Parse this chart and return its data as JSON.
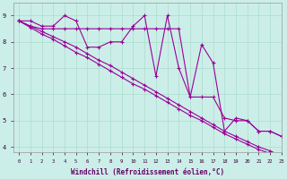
{
  "background_color": "#cceee8",
  "grid_color": "#aaddcc",
  "line_color": "#990099",
  "marker": "+",
  "xlim": [
    -0.5,
    23
  ],
  "ylim": [
    3.8,
    9.5
  ],
  "yticks": [
    4,
    5,
    6,
    7,
    8,
    9
  ],
  "xticks": [
    0,
    1,
    2,
    3,
    4,
    5,
    6,
    7,
    8,
    9,
    10,
    11,
    12,
    13,
    14,
    15,
    16,
    17,
    18,
    19,
    20,
    21,
    22,
    23
  ],
  "xlabel": "Windchill (Refroidissement éolien,°C)",
  "series1_y": [
    8.8,
    8.8,
    8.6,
    8.6,
    9.0,
    8.8,
    7.8,
    7.8,
    8.0,
    8.0,
    8.6,
    9.0,
    6.7,
    9.0,
    7.0,
    5.9,
    7.9,
    7.2,
    4.6,
    5.1,
    5.0,
    4.6,
    4.6,
    4.4
  ],
  "series2_y": [
    8.8,
    8.6,
    8.5,
    8.5,
    8.5,
    8.5,
    8.5,
    8.5,
    8.5,
    8.5,
    8.5,
    8.5,
    8.5,
    8.5,
    8.5,
    5.9,
    5.9,
    5.9,
    5.1,
    5.0,
    5.0,
    4.6,
    4.6,
    4.4
  ],
  "series3_y": [
    8.8,
    8.55,
    8.3,
    8.1,
    7.85,
    7.6,
    7.4,
    7.15,
    6.9,
    6.65,
    6.4,
    6.2,
    5.95,
    5.7,
    5.45,
    5.2,
    5.0,
    4.75,
    4.5,
    4.3,
    4.1,
    3.9,
    3.75,
    3.55
  ],
  "series4_y": [
    8.8,
    8.6,
    8.4,
    8.2,
    8.0,
    7.8,
    7.55,
    7.3,
    7.1,
    6.85,
    6.6,
    6.35,
    6.1,
    5.85,
    5.6,
    5.35,
    5.1,
    4.85,
    4.6,
    4.4,
    4.2,
    4.0,
    3.85,
    3.65
  ]
}
